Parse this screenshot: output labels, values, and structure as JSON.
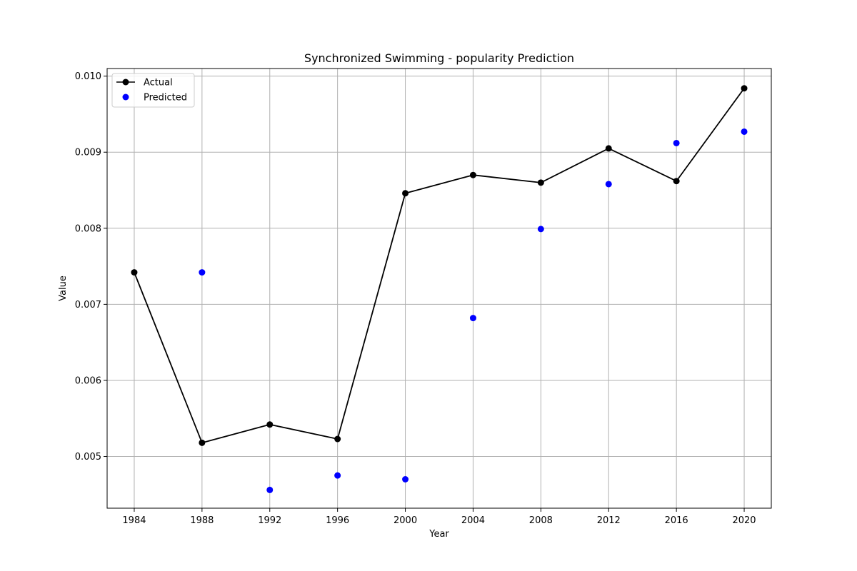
{
  "chart_data": {
    "type": "line",
    "title": "Synchronized Swimming - popularity Prediction",
    "xlabel": "Year",
    "ylabel": "Value",
    "x": [
      1984,
      1988,
      1992,
      1996,
      2000,
      2004,
      2008,
      2012,
      2016,
      2020
    ],
    "xlim": [
      1982.4,
      2021.6
    ],
    "ylim": [
      0.00432,
      0.0101
    ],
    "xticks": [
      1984,
      1988,
      1992,
      1996,
      2000,
      2004,
      2008,
      2012,
      2016,
      2020
    ],
    "yticks": [
      0.005,
      0.006,
      0.007,
      0.008,
      0.009,
      0.01
    ],
    "ytick_labels": [
      "0.005",
      "0.006",
      "0.007",
      "0.008",
      "0.009",
      "0.010"
    ],
    "grid": true,
    "legend_position": "upper-left",
    "series": [
      {
        "name": "Actual",
        "style": "line-marker",
        "color": "#000000",
        "x": [
          1984,
          1988,
          1992,
          1996,
          2000,
          2004,
          2008,
          2012,
          2016,
          2020
        ],
        "values": [
          0.00742,
          0.00518,
          0.00542,
          0.00523,
          0.00846,
          0.0087,
          0.0086,
          0.00905,
          0.00862,
          0.00984
        ]
      },
      {
        "name": "Predicted",
        "style": "scatter",
        "color": "#0000ff",
        "x": [
          1988,
          1992,
          1996,
          2000,
          2004,
          2008,
          2012,
          2016,
          2020
        ],
        "values": [
          0.00742,
          0.00456,
          0.00475,
          0.0047,
          0.00682,
          0.00799,
          0.00858,
          0.00912,
          0.00927
        ]
      }
    ]
  }
}
